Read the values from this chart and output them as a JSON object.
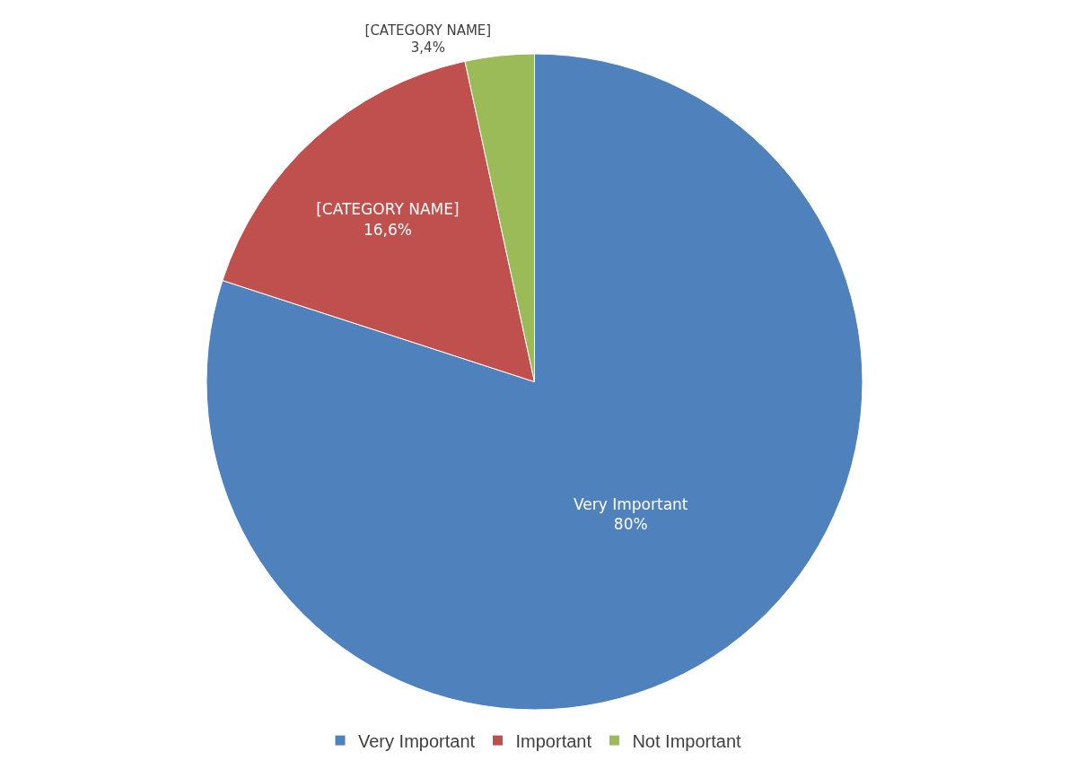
{
  "chart_data": {
    "type": "pie",
    "categories": [
      "Very Important",
      "Important",
      "Not Important"
    ],
    "values": [
      80,
      16.6,
      3.4
    ],
    "colors": [
      "#4f81bd",
      "#c0504d",
      "#9bbb59"
    ],
    "value_labels": [
      "Very Important\n80%",
      "[CATEGORY NAME]\n16,6%",
      "[CATEGORY NAME]\n3,4%"
    ],
    "legend": "bottom"
  }
}
